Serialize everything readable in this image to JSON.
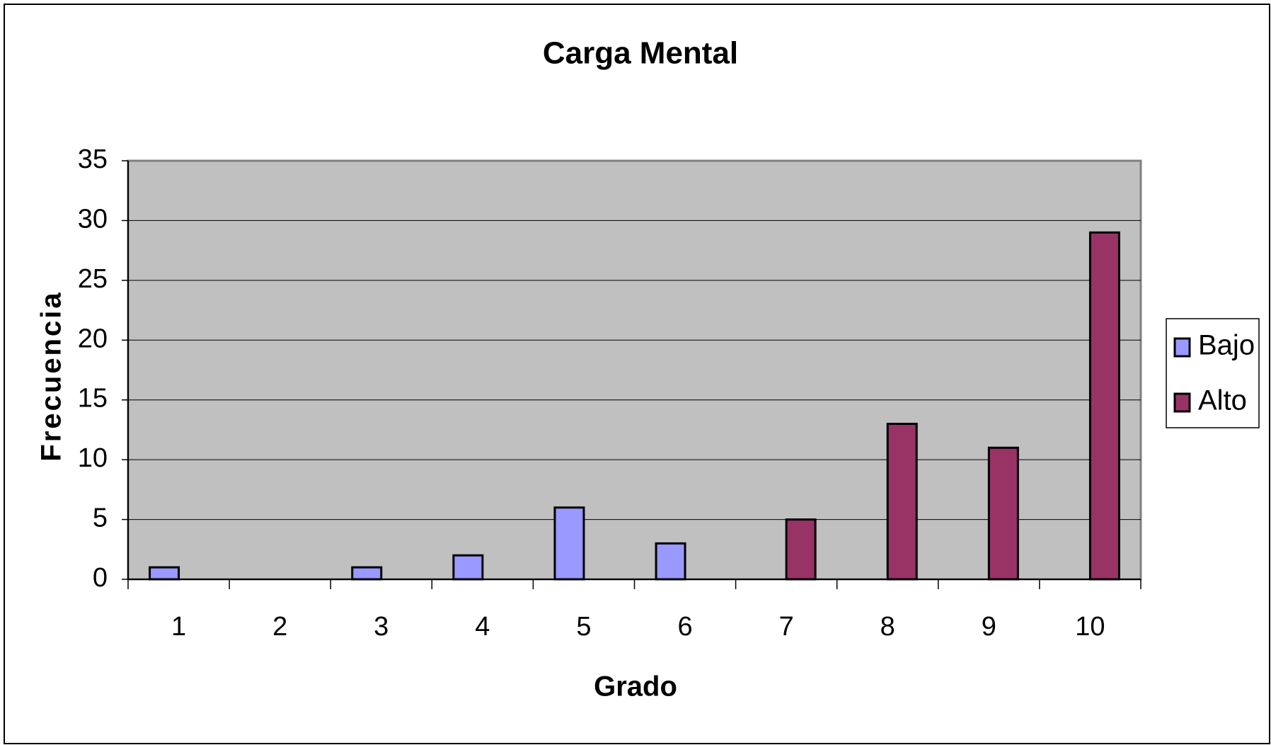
{
  "chart_data": {
    "type": "bar",
    "title": "Carga Mental",
    "x_label": "Grado",
    "y_label": "Frecuencia",
    "categories": [
      "1",
      "2",
      "3",
      "4",
      "5",
      "6",
      "7",
      "8",
      "9",
      "10"
    ],
    "series": [
      {
        "name": "Bajo",
        "color": "#9999ff",
        "values": [
          1,
          0,
          1,
          2,
          6,
          3,
          0,
          0,
          0,
          0
        ]
      },
      {
        "name": "Alto",
        "color": "#993366",
        "values": [
          0,
          0,
          0,
          0,
          0,
          0,
          5,
          13,
          11,
          29
        ]
      }
    ],
    "ylim": [
      0,
      35
    ],
    "yticks": [
      0,
      5,
      10,
      15,
      20,
      25,
      30,
      35
    ],
    "grid": true,
    "legend": "right"
  }
}
